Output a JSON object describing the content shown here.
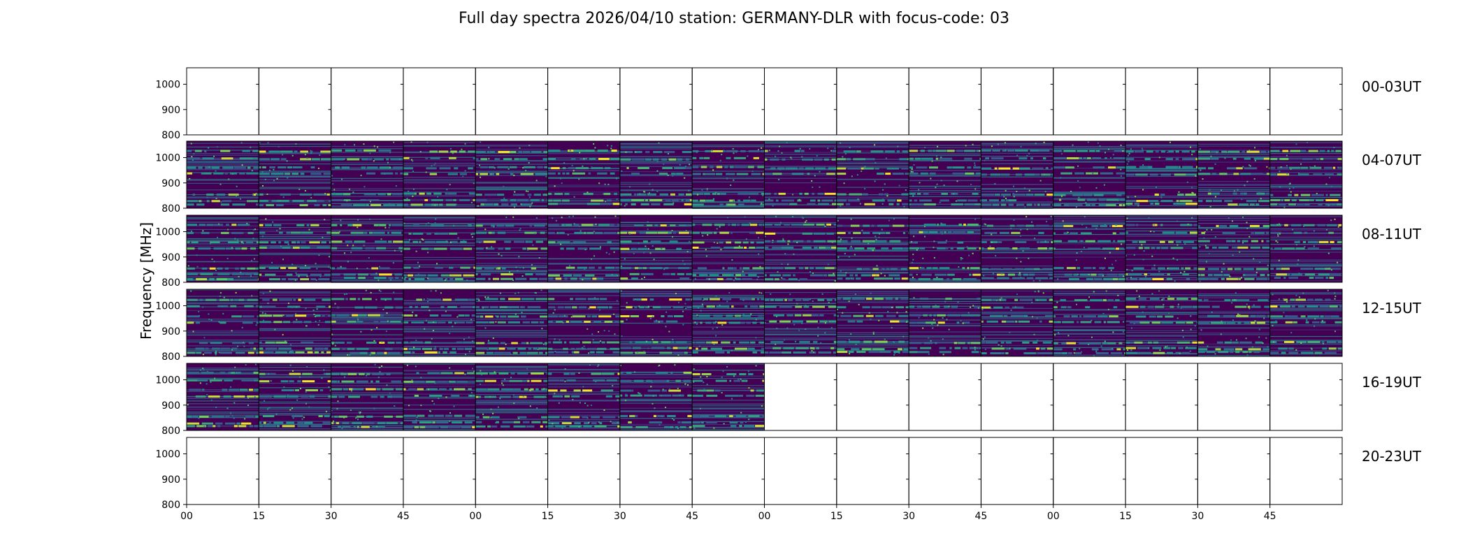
{
  "chart_data": {
    "type": "heatmap",
    "title": "Full day spectra 2026/04/10 station: GERMANY-DLR with focus-code: 03",
    "ylabel": "Frequency [MHz]",
    "xlabel": "",
    "ylim": [
      800,
      1065
    ],
    "y_ticks": [
      "800",
      "900",
      "1000"
    ],
    "x_tick_labels": [
      "00",
      "15",
      "30",
      "45",
      "00",
      "15",
      "30",
      "45",
      "00",
      "15",
      "30",
      "45",
      "00",
      "15",
      "30",
      "45"
    ],
    "columns_per_row": 16,
    "colormap": [
      "#440154",
      "#3b528b",
      "#21918c",
      "#5ec962",
      "#fde725"
    ],
    "rows": [
      {
        "label": "00-03UT",
        "panels_with_data": 0
      },
      {
        "label": "04-07UT",
        "panels_with_data": 16
      },
      {
        "label": "08-11UT",
        "panels_with_data": 16
      },
      {
        "label": "12-15UT",
        "panels_with_data": 16
      },
      {
        "label": "16-19UT",
        "panels_with_data": 8
      },
      {
        "label": "20-23UT",
        "panels_with_data": 0
      }
    ],
    "strong_bands_mhz": [
      1025,
      995,
      960,
      935,
      855,
      830,
      815
    ]
  }
}
